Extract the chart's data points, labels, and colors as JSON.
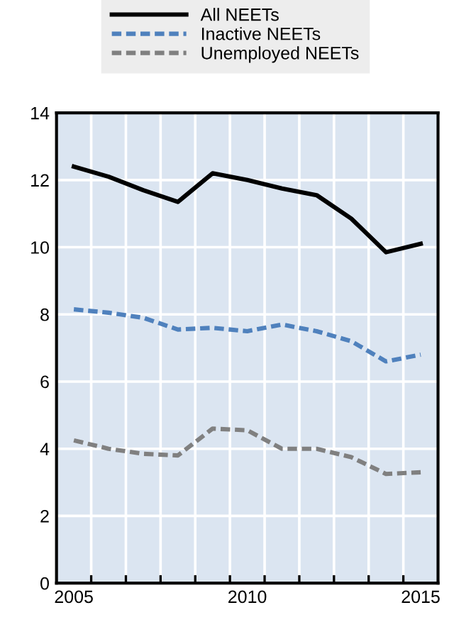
{
  "chart_data": {
    "type": "line",
    "x": [
      2005,
      2006,
      2007,
      2008,
      2009,
      2010,
      2011,
      2012,
      2013,
      2014,
      2015
    ],
    "series": [
      {
        "name": "All NEETs",
        "color": "#000000",
        "line_style": "solid",
        "values": [
          12.4,
          12.1,
          11.7,
          11.35,
          12.2,
          12.0,
          11.75,
          11.55,
          10.85,
          9.85,
          10.1
        ]
      },
      {
        "name": "Inactive NEETs",
        "color": "#4f81bd",
        "line_style": "dashed",
        "values": [
          8.15,
          8.05,
          7.9,
          7.55,
          7.6,
          7.5,
          7.7,
          7.5,
          7.2,
          6.6,
          6.8
        ]
      },
      {
        "name": "Unemployed NEETs",
        "color": "#808080",
        "line_style": "dashed",
        "values": [
          4.25,
          4.0,
          3.85,
          3.8,
          4.6,
          4.55,
          4.0,
          4.0,
          3.75,
          3.25,
          3.3
        ]
      }
    ],
    "xlim": [
      2004.5,
      2015.5
    ],
    "xticks": [
      2005,
      2010,
      2015,
      {
        "value": 2005.5,
        "label": null
      },
      {
        "value": 2006.5,
        "label": null
      },
      {
        "value": 2007.5,
        "label": null
      },
      {
        "value": 2008.5,
        "label": null
      },
      {
        "value": 2009.5,
        "label": null
      },
      {
        "value": 2010.5,
        "label": null
      },
      {
        "value": 2011.5,
        "label": null
      },
      {
        "value": 2012.5,
        "label": null
      },
      {
        "value": 2013.5,
        "label": null
      },
      {
        "value": 2014.5,
        "label": null
      }
    ],
    "ylim": [
      0,
      14
    ],
    "yticks": [
      0,
      2,
      4,
      6,
      8,
      10,
      12,
      14
    ],
    "grid": true,
    "legend": "top",
    "marker": "none"
  }
}
